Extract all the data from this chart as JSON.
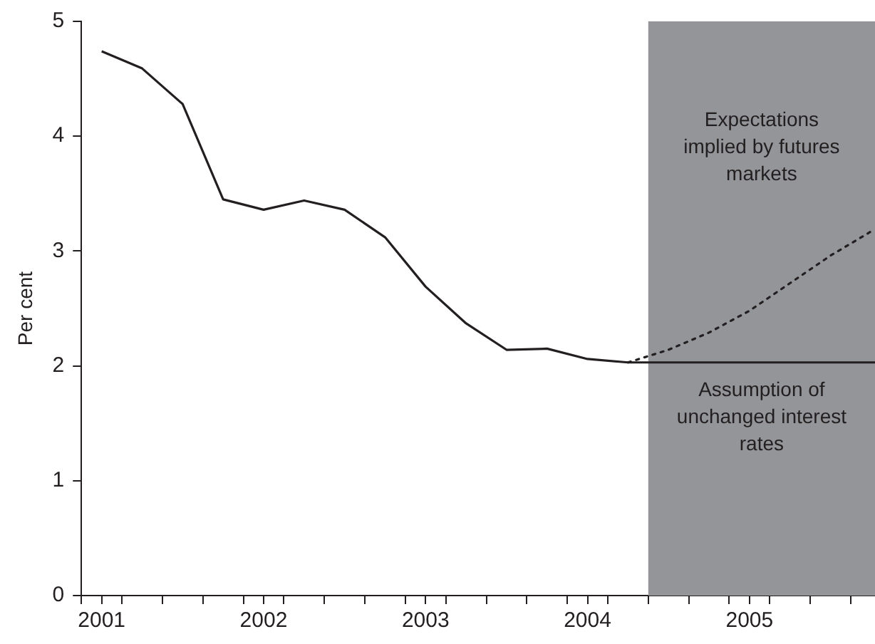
{
  "chart_data": {
    "type": "line",
    "ylabel": "Per cent",
    "xlim": [
      2000.875,
      2005.775
    ],
    "ylim": [
      0,
      5
    ],
    "yticks": [
      0,
      1,
      2,
      3,
      4,
      5
    ],
    "xticks": [
      {
        "value": 2000.875,
        "label": null
      },
      2001,
      {
        "value": 2001.125,
        "label": null
      },
      {
        "value": 2001.375,
        "label": null
      },
      {
        "value": 2001.625,
        "label": null
      },
      {
        "value": 2001.875,
        "label": null
      },
      2002,
      {
        "value": 2002.125,
        "label": null
      },
      {
        "value": 2002.375,
        "label": null
      },
      {
        "value": 2002.625,
        "label": null
      },
      {
        "value": 2002.875,
        "label": null
      },
      2003,
      {
        "value": 2003.125,
        "label": null
      },
      {
        "value": 2003.375,
        "label": null
      },
      {
        "value": 2003.625,
        "label": null
      },
      {
        "value": 2003.875,
        "label": null
      },
      2004,
      {
        "value": 2004.125,
        "label": null
      },
      {
        "value": 2004.375,
        "label": null
      },
      {
        "value": 2004.625,
        "label": null
      },
      {
        "value": 2004.875,
        "label": null
      },
      2005,
      {
        "value": 2005.125,
        "label": null
      },
      {
        "value": 2005.375,
        "label": null
      },
      {
        "value": 2005.625,
        "label": null
      }
    ],
    "grid": false,
    "legend": false,
    "marker": "none",
    "series": [
      {
        "color": "#231f20",
        "line_style": "solid",
        "x": [
          2001,
          2001.25,
          2001.5,
          2001.75,
          2002,
          2002.25,
          2002.5,
          2002.75,
          2003,
          2003.25,
          2003.5,
          2003.75,
          2004,
          2004.25,
          2005.775
        ],
        "values": [
          4.74,
          4.59,
          4.28,
          3.45,
          3.36,
          3.44,
          3.36,
          3.12,
          2.69,
          2.37,
          2.14,
          2.15,
          2.06,
          2.03,
          2.03
        ]
      },
      {
        "color": "#231f20",
        "line_style": "dotted",
        "x": [
          2004.25,
          2004.5,
          2004.75,
          2005,
          2005.25,
          2005.5,
          2005.75
        ],
        "values": [
          2.03,
          2.14,
          2.29,
          2.48,
          2.72,
          2.96,
          3.17
        ]
      }
    ],
    "bands": [
      {
        "axis": "x",
        "from": 2004.375,
        "to": 2005.775,
        "color": "#939598"
      }
    ],
    "annotations": [
      "Expectations implied by futures markets",
      "Assumption of unchanged interest rates"
    ]
  }
}
